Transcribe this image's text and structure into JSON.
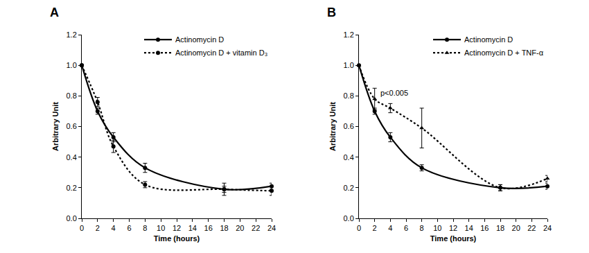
{
  "chart_data": [
    {
      "type": "line",
      "title": "A",
      "x_label": "Time (hours)",
      "y_label": "Arbitrary Unit",
      "x": [
        0,
        2,
        4,
        8,
        18,
        24
      ],
      "series": [
        {
          "name": "Actinomycin D",
          "color": "#000000",
          "line_style": "solid",
          "marker": "circle",
          "values": [
            1.0,
            0.7,
            0.53,
            0.33,
            0.19,
            0.21
          ],
          "errors": [
            0,
            0.02,
            0.03,
            0.03,
            0.04,
            0.02
          ]
        },
        {
          "name": "Actinomycin D + vitamin D₃",
          "color": "#000000",
          "line_style": "dot",
          "marker": "circle",
          "values": [
            1.0,
            0.76,
            0.47,
            0.22,
            0.19,
            0.18
          ],
          "errors": [
            0,
            0.03,
            0.04,
            0.02,
            0.02,
            0.03
          ]
        }
      ],
      "xlim": [
        0,
        24
      ],
      "xticks": [
        0,
        2,
        4,
        6,
        8,
        10,
        12,
        14,
        16,
        18,
        20,
        22,
        24
      ],
      "ylim": [
        0,
        1.2
      ],
      "yticks": [
        {
          "value": 0,
          "label": "0.0"
        },
        {
          "value": 0.2,
          "label": "0.2"
        },
        {
          "value": 0.4,
          "label": "0.4"
        },
        {
          "value": 0.6,
          "label": "0.6"
        },
        {
          "value": 0.8,
          "label": "0.8"
        },
        {
          "value": 1.0,
          "label": "1.0"
        },
        {
          "value": 1.2,
          "label": "1.2"
        }
      ],
      "grid": false,
      "legend": "top right"
    },
    {
      "type": "line",
      "title": "B",
      "x_label": "Time (hours)",
      "y_label": "Arbitrary Unit",
      "x": [
        0,
        2,
        4,
        8,
        18,
        24
      ],
      "series": [
        {
          "name": "Actinomycin D",
          "color": "#000000",
          "line_style": "solid",
          "marker": "circle",
          "values": [
            1.0,
            0.7,
            0.53,
            0.33,
            0.2,
            0.21
          ],
          "errors": [
            0,
            0.02,
            0.03,
            0.02,
            0.02,
            0.02
          ]
        },
        {
          "name": "Actinomycin D + TNF-α",
          "color": "#000000",
          "line_style": "dot",
          "marker": "triangle-up",
          "values": [
            1.0,
            0.78,
            0.72,
            0.59,
            0.2,
            0.26
          ],
          "errors": [
            0,
            0.07,
            0.03,
            0.13,
            0.02,
            0.02
          ]
        }
      ],
      "annotations": [
        {
          "text": "p<0.005",
          "x": 2.6,
          "y": 0.82
        }
      ],
      "xlim": [
        0,
        24
      ],
      "xticks": [
        0,
        2,
        4,
        6,
        8,
        10,
        12,
        14,
        16,
        18,
        20,
        22,
        24
      ],
      "ylim": [
        0,
        1.2
      ],
      "yticks": [
        {
          "value": 0,
          "label": "0.0"
        },
        {
          "value": 0.2,
          "label": "0.2"
        },
        {
          "value": 0.4,
          "label": "0.4"
        },
        {
          "value": 0.6,
          "label": "0.6"
        },
        {
          "value": 0.8,
          "label": "0.8"
        },
        {
          "value": 1.0,
          "label": "1.0"
        },
        {
          "value": 1.2,
          "label": "1.2"
        }
      ],
      "grid": false,
      "legend": "top right"
    }
  ]
}
